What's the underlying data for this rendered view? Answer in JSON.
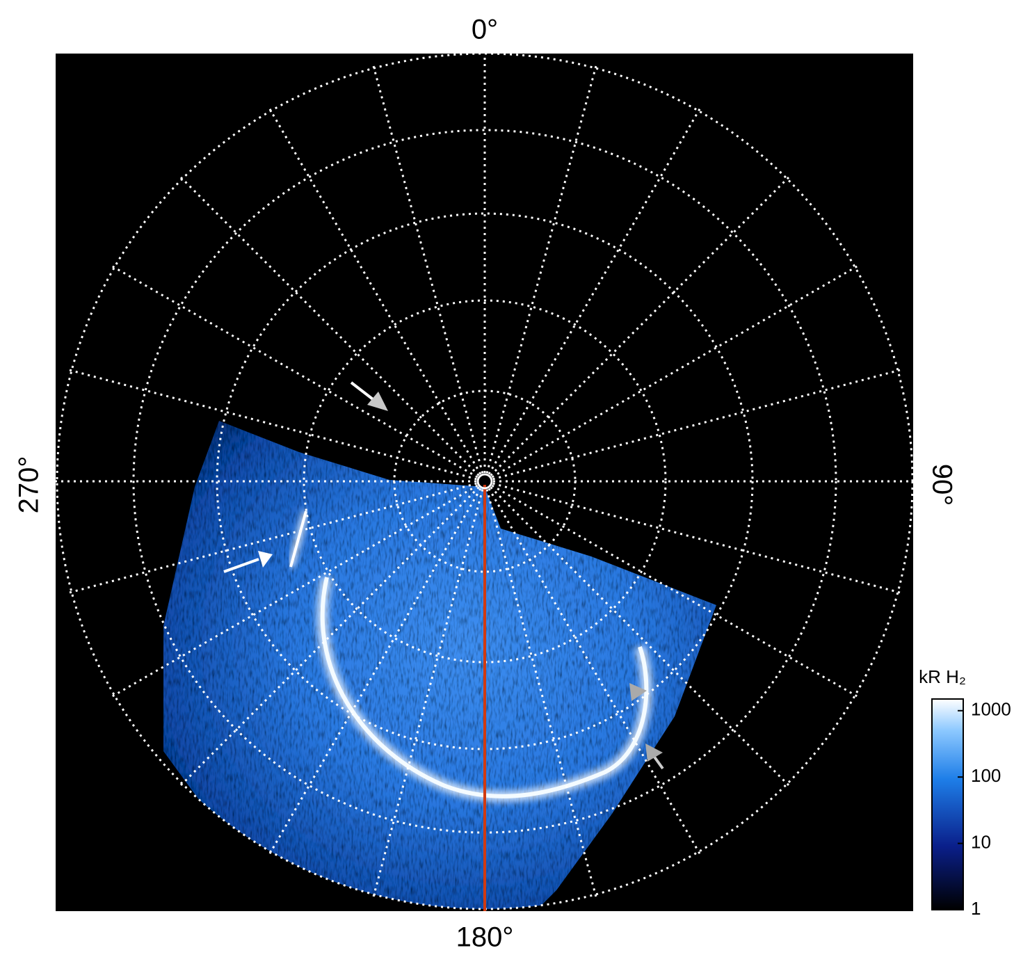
{
  "labels": {
    "top": "0°",
    "right": "90°",
    "bottom": "180°",
    "left": "270°"
  },
  "colorbar": {
    "title": "kR H₂",
    "scale": "log",
    "lim": [
      1,
      1500
    ],
    "ticks": [
      1,
      10,
      100,
      1000
    ]
  }
}
